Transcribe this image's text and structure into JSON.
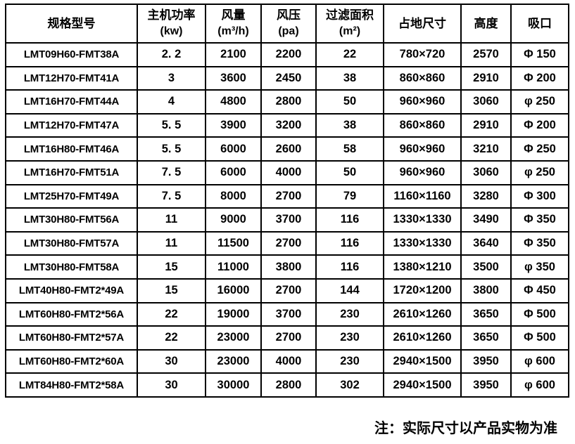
{
  "table": {
    "columns": [
      {
        "key": "model",
        "label": "规格型号",
        "unit": ""
      },
      {
        "key": "power",
        "label": "主机功率",
        "unit": "(kw)"
      },
      {
        "key": "air-volume",
        "label": "风量",
        "unit": "(m³/h)"
      },
      {
        "key": "air-pressure",
        "label": "风压",
        "unit": "(pa)"
      },
      {
        "key": "filter-area",
        "label": "过滤面积",
        "unit": "(m²)"
      },
      {
        "key": "footprint",
        "label": "占地尺寸",
        "unit": ""
      },
      {
        "key": "height",
        "label": "高度",
        "unit": ""
      },
      {
        "key": "inlet",
        "label": "吸口",
        "unit": ""
      }
    ],
    "rows": [
      [
        "LMT09H60-FMT38A",
        "2. 2",
        "2100",
        "2200",
        "22",
        "780×720",
        "2570",
        "Φ 150"
      ],
      [
        "LMT12H70-FMT41A",
        "3",
        "3600",
        "2450",
        "38",
        "860×860",
        "2910",
        "Φ 200"
      ],
      [
        "LMT16H70-FMT44A",
        "4",
        "4800",
        "2800",
        "50",
        "960×960",
        "3060",
        "φ 250"
      ],
      [
        "LMT12H70-FMT47A",
        "5. 5",
        "3900",
        "3200",
        "38",
        "860×860",
        "2910",
        "Φ 200"
      ],
      [
        "LMT16H80-FMT46A",
        "5. 5",
        "6000",
        "2600",
        "58",
        "960×960",
        "3210",
        "Φ 250"
      ],
      [
        "LMT16H70-FMT51A",
        "7. 5",
        "6000",
        "4000",
        "50",
        "960×960",
        "3060",
        "φ 250"
      ],
      [
        "LMT25H70-FMT49A",
        "7. 5",
        "8000",
        "2700",
        "79",
        "1160×1160",
        "3280",
        "Φ 300"
      ],
      [
        "LMT30H80-FMT56A",
        "11",
        "9000",
        "3700",
        "116",
        "1330×1330",
        "3490",
        "Φ 350"
      ],
      [
        "LMT30H80-FMT57A",
        "11",
        "11500",
        "2700",
        "116",
        "1330×1330",
        "3640",
        "Φ 350"
      ],
      [
        "LMT30H80-FMT58A",
        "15",
        "11000",
        "3800",
        "116",
        "1380×1210",
        "3500",
        "φ 350"
      ],
      [
        "LMT40H80-FMT2*49A",
        "15",
        "16000",
        "2700",
        "144",
        "1720×1200",
        "3800",
        "Φ 450"
      ],
      [
        "LMT60H80-FMT2*56A",
        "22",
        "19000",
        "3700",
        "230",
        "2610×1260",
        "3650",
        "Φ 500"
      ],
      [
        "LMT60H80-FMT2*57A",
        "22",
        "23000",
        "2700",
        "230",
        "2610×1260",
        "3650",
        "Φ 500"
      ],
      [
        "LMT60H80-FMT2*60A",
        "30",
        "23000",
        "4000",
        "230",
        "2940×1500",
        "3950",
        "φ 600"
      ],
      [
        "LMT84H80-FMT2*58A",
        "30",
        "30000",
        "2800",
        "302",
        "2940×1500",
        "3950",
        "φ 600"
      ]
    ]
  },
  "note": {
    "text": "注：实际尺寸以产品实物为准"
  },
  "colors": {
    "border": "#000000",
    "text": "#000000",
    "background": "#ffffff"
  }
}
